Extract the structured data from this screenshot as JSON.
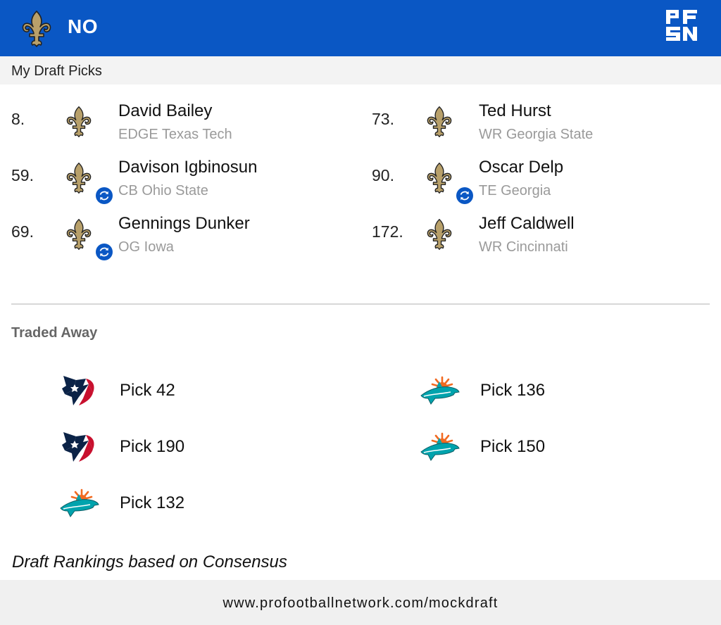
{
  "header": {
    "team_abbr": "NO",
    "team_logo_icon": "fleur-de-lis-icon",
    "brand_logo_icon": "pfsn-logo-icon",
    "background_color": "#0a57c4"
  },
  "section_title": "My Draft Picks",
  "picks": [
    {
      "number": "8.",
      "name": "David Bailey",
      "meta": "EDGE Texas Tech",
      "traded_for": false
    },
    {
      "number": "59.",
      "name": "Davison Igbinosun",
      "meta": "CB Ohio State",
      "traded_for": true
    },
    {
      "number": "69.",
      "name": "Gennings Dunker",
      "meta": "OG Iowa",
      "traded_for": true
    },
    {
      "number": "73.",
      "name": "Ted Hurst",
      "meta": "WR Georgia State",
      "traded_for": false
    },
    {
      "number": "90.",
      "name": "Oscar Delp",
      "meta": "TE Georgia",
      "traded_for": true
    },
    {
      "number": "172.",
      "name": "Jeff Caldwell",
      "meta": "WR Cincinnati",
      "traded_for": false
    }
  ],
  "traded_away": {
    "title": "Traded Away",
    "items": [
      {
        "label": "Pick 42",
        "team_icon": "houston-texans-logo-icon"
      },
      {
        "label": "Pick 190",
        "team_icon": "houston-texans-logo-icon"
      },
      {
        "label": "Pick 132",
        "team_icon": "miami-dolphins-logo-icon"
      },
      {
        "label": "Pick 136",
        "team_icon": "miami-dolphins-logo-icon"
      },
      {
        "label": "Pick 150",
        "team_icon": "miami-dolphins-logo-icon"
      }
    ]
  },
  "footnote": "Draft Rankings based on Consensus",
  "footer_url": "www.profootballnetwork.com/mockdraft",
  "colors": {
    "saints_gold": "#b8a06a",
    "trade_badge": "#0a57c4",
    "texans_navy": "#0b2347",
    "texans_red": "#c8102e",
    "dolphins_aqua": "#00a3ad",
    "dolphins_orange": "#f26a21"
  }
}
